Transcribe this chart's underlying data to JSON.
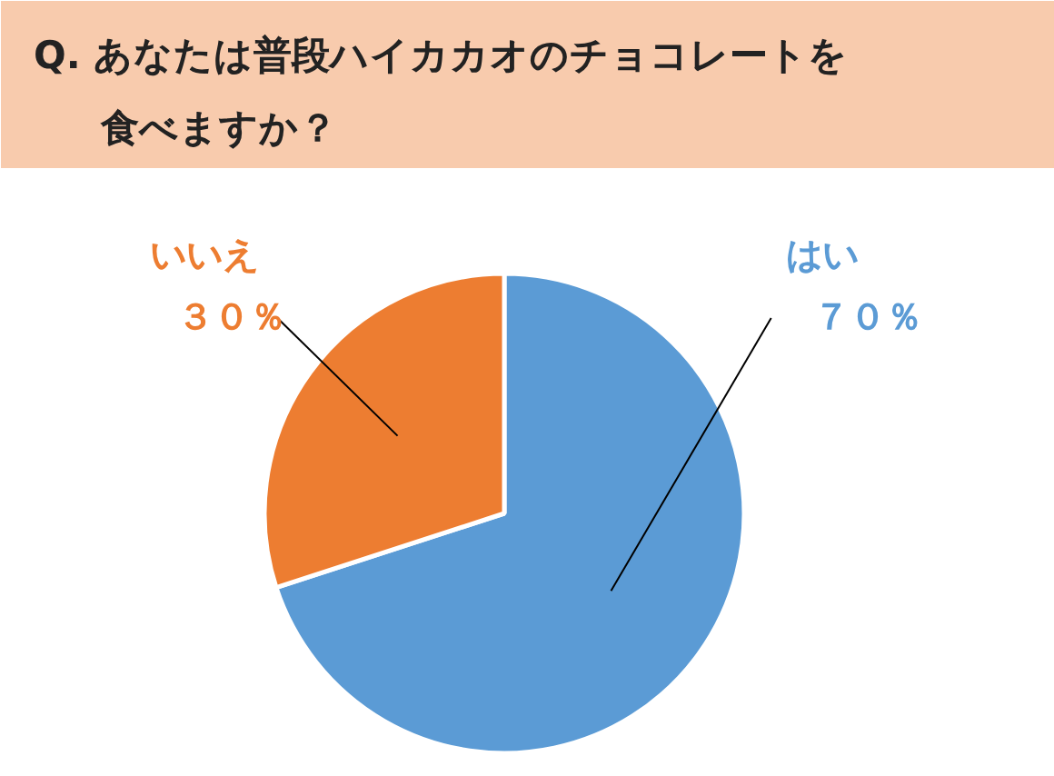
{
  "chart_data": {
    "type": "pie",
    "title": "Q.  あなたは普段ハイカカオのチョコレートを食べますか？",
    "categories": [
      "はい",
      "いいえ"
    ],
    "values": [
      70,
      30
    ],
    "colors": [
      "#5b9bd5",
      "#ed7d31"
    ],
    "value_labels": [
      "７０％",
      "３０％"
    ]
  }
}
